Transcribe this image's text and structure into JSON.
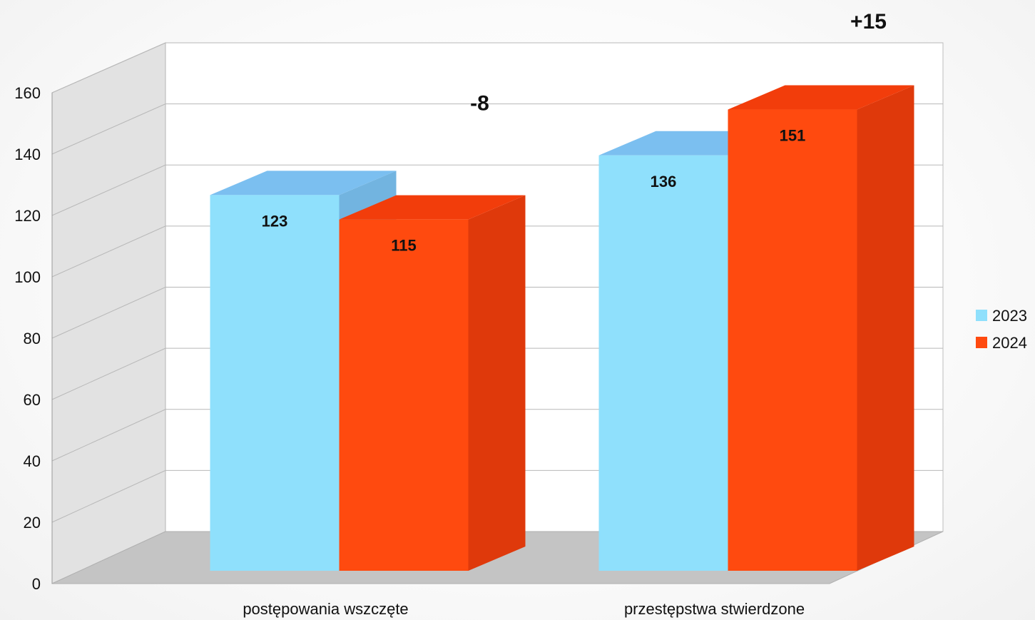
{
  "chart_data": {
    "type": "bar",
    "title": "",
    "xlabel": "",
    "ylabel": "",
    "categories": [
      "postępowania wszczęte",
      "przestępstwa stwierdzone"
    ],
    "series": [
      {
        "name": "2023",
        "values": [
          123,
          136
        ],
        "color": "#8fe0fc",
        "top_color": "#7bbff0",
        "side_color": "#72b4e0"
      },
      {
        "name": "2024",
        "values": [
          115,
          151
        ],
        "color": "#ff4a0f",
        "top_color": "#f23d0b",
        "side_color": "#df390b"
      }
    ],
    "ylim": [
      0,
      160
    ],
    "yticks": [
      0,
      20,
      40,
      60,
      80,
      100,
      120,
      140,
      160
    ],
    "annotations": [
      {
        "category": "postępowania wszczęte",
        "text": "-8"
      },
      {
        "category": "przestępstwa stwierdzone",
        "text": "+15"
      }
    ],
    "grid": true,
    "legend_position": "right",
    "floor_color": "#c4c4c4",
    "side_wall_color": "#e2e2e2"
  }
}
